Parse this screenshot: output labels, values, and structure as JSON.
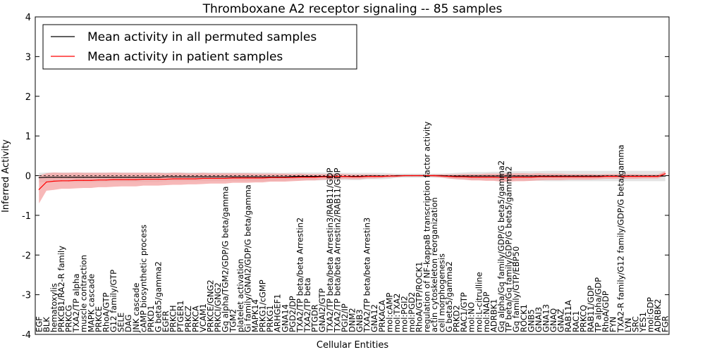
{
  "chart_data": {
    "type": "line",
    "title": "Thromboxane A2 receptor signaling -- 85 samples",
    "xlabel": "Cellular Entities",
    "ylabel": "Inferred Activity",
    "ylim": [
      -4,
      4
    ],
    "yticks": [
      -4,
      -3,
      -2,
      -1,
      0,
      1,
      2,
      3,
      4
    ],
    "legend_position": "top-left",
    "colors": {
      "permuted": "#000000",
      "patient": "#ff0000",
      "permuted_band": "#d9d9d9",
      "patient_band": "#f4a0a0"
    },
    "categories": [
      "EGF",
      "BLK",
      "hematoxylis",
      "PRKCB1/RA2-R family",
      "PRKCG",
      "TXA2/TP alpha",
      "muscle contraction",
      "MAPK cascade",
      "PRKCE",
      "RhoA/GTP",
      "G12 family/GTP",
      "SELE",
      "DAG",
      "JNK cascade",
      "cAMP biosynthetic process",
      "PRKD1",
      "G beta5/gamma2",
      "EGFR",
      "PRKCH",
      "PTGER1",
      "PRKCZ",
      "PRKCA",
      "VCAM1",
      "PRKCE/GNG2",
      "PRKCI/GNG2",
      "Gq alpha/TGM2/GDP/G beta/gamma",
      "TGM2",
      "platelet activation",
      "Gi family/GNAI2/GDP/G beta/gamma",
      "MAPK14",
      "PRKG1/cGMP",
      "PRKG1",
      "ARHGEF1",
      "GNA14",
      "PGD2/DP",
      "TXA2/TP beta/beta Arrestin2",
      "TXA2/TP beta",
      "PTGDR",
      "GNAI2/GTP",
      "TXA2/TP beta/beta Arrestin3/RAB11/GDP",
      "TXA2/TP beta/beta Arrestin2/RAB11/GDP",
      "PGI2/IP",
      "DNM2",
      "GNB3",
      "TXA2/TP beta/beta Arrestin3",
      "GNA12",
      "PRKACA",
      "mol:cAMP",
      "mol:TXA2",
      "mol:PGI2",
      "mol:PGD2",
      "RhoA/GTP/ROCK1",
      "regulation of NF-kappaB transcription factor activity",
      "actin cytoskeleton reorganization",
      "cell morphogenesis",
      "G beta5/gamma2",
      "PRKD2",
      "RAC1/GTP",
      "mol:NO",
      "mol:L-citrulline",
      "mol:NADP",
      "ADRBK1",
      "Gq alpha/Gq family/GDP/G beta5/gamma2",
      "TP beta/Gq family/GDP/G beta5/gamma2",
      "Gq family/GTP/EBP50",
      "ROCK1",
      "GNB5",
      "GNAI3",
      "GNA13",
      "GNAQ",
      "GNAZ",
      "RAB11A",
      "RAC1",
      "PRKCQ",
      "RAB11/GDP",
      "TP alpha/GDP",
      "RhoA/GDP",
      "FYN",
      "TXA2-R family/G12 family/GDP/G beta/gamma",
      "LYN",
      "SRC",
      "YES1",
      "mol:GDP",
      "ADRBK2",
      "FGR"
    ],
    "series": [
      {
        "name": "Mean activity in all permuted samples",
        "values": [
          -0.05,
          -0.04,
          -0.04,
          -0.04,
          -0.04,
          -0.04,
          -0.04,
          -0.04,
          -0.04,
          -0.04,
          -0.04,
          -0.04,
          -0.04,
          -0.04,
          -0.04,
          -0.04,
          -0.04,
          -0.03,
          -0.03,
          -0.03,
          -0.03,
          -0.03,
          -0.03,
          -0.03,
          -0.03,
          -0.03,
          -0.03,
          -0.03,
          -0.03,
          -0.03,
          -0.03,
          -0.03,
          -0.03,
          -0.03,
          -0.02,
          -0.02,
          -0.02,
          -0.02,
          -0.02,
          -0.02,
          -0.02,
          -0.02,
          -0.02,
          -0.02,
          -0.01,
          -0.01,
          -0.01,
          -0.01,
          0,
          0,
          0,
          0,
          0,
          0,
          0,
          -0.01,
          -0.01,
          -0.01,
          -0.01,
          -0.01,
          -0.01,
          -0.01,
          -0.01,
          -0.01,
          -0.01,
          -0.01,
          -0.01,
          -0.01,
          -0.01,
          -0.01,
          -0.01,
          -0.01,
          -0.01,
          -0.01,
          -0.01,
          -0.01,
          -0.01,
          -0.01,
          -0.01,
          -0.01,
          -0.01,
          -0.01,
          -0.01,
          -0.01,
          -0.01
        ],
        "band": [
          0.12,
          0.12,
          0.12,
          0.12,
          0.12,
          0.12,
          0.12,
          0.12,
          0.12,
          0.12,
          0.12,
          0.12,
          0.12,
          0.12,
          0.12,
          0.12,
          0.12,
          0.11,
          0.11,
          0.11,
          0.11,
          0.11,
          0.11,
          0.11,
          0.11,
          0.11,
          0.11,
          0.11,
          0.11,
          0.11,
          0.11,
          0.11,
          0.1,
          0.1,
          0.1,
          0.1,
          0.1,
          0.1,
          0.1,
          0.09,
          0.09,
          0.09,
          0.09,
          0.09,
          0.08,
          0.08,
          0.08,
          0.07,
          0.05,
          0.05,
          0.05,
          0.05,
          0.05,
          0.05,
          0.05,
          0.07,
          0.08,
          0.09,
          0.1,
          0.1,
          0.1,
          0.11,
          0.11,
          0.12,
          0.12,
          0.12,
          0.12,
          0.12,
          0.13,
          0.13,
          0.13,
          0.13,
          0.13,
          0.13,
          0.13,
          0.13,
          0.13,
          0.13,
          0.13,
          0.13,
          0.13,
          0.13,
          0.13,
          0.13,
          0.13
        ]
      },
      {
        "name": "Mean activity in patient samples",
        "values": [
          -0.35,
          -0.16,
          -0.14,
          -0.13,
          -0.13,
          -0.12,
          -0.12,
          -0.12,
          -0.11,
          -0.11,
          -0.1,
          -0.1,
          -0.1,
          -0.1,
          -0.09,
          -0.09,
          -0.09,
          -0.09,
          -0.08,
          -0.08,
          -0.08,
          -0.08,
          -0.07,
          -0.07,
          -0.07,
          -0.07,
          -0.06,
          -0.06,
          -0.06,
          -0.06,
          -0.06,
          -0.05,
          -0.05,
          -0.05,
          -0.05,
          -0.04,
          -0.04,
          -0.04,
          -0.03,
          -0.03,
          -0.02,
          -0.02,
          -0.03,
          -0.03,
          -0.02,
          -0.02,
          -0.02,
          -0.01,
          -0.01,
          0,
          0,
          0,
          0,
          0,
          -0.01,
          -0.02,
          -0.03,
          -0.03,
          -0.04,
          -0.04,
          -0.04,
          -0.04,
          -0.05,
          -0.05,
          -0.04,
          -0.04,
          -0.04,
          -0.03,
          -0.03,
          -0.03,
          -0.03,
          -0.03,
          -0.03,
          -0.03,
          -0.03,
          -0.03,
          -0.02,
          -0.02,
          -0.02,
          -0.02,
          -0.02,
          -0.02,
          -0.02,
          -0.02,
          0.05
        ],
        "band": [
          0.35,
          0.22,
          0.22,
          0.2,
          0.2,
          0.2,
          0.19,
          0.19,
          0.18,
          0.18,
          0.18,
          0.17,
          0.17,
          0.17,
          0.16,
          0.16,
          0.16,
          0.15,
          0.15,
          0.15,
          0.14,
          0.14,
          0.14,
          0.13,
          0.13,
          0.13,
          0.12,
          0.12,
          0.12,
          0.11,
          0.11,
          0.1,
          0.1,
          0.1,
          0.09,
          0.09,
          0.08,
          0.08,
          0.07,
          0.07,
          0.07,
          0.06,
          0.06,
          0.06,
          0.05,
          0.05,
          0.04,
          0.04,
          0.03,
          0.02,
          0.02,
          0.02,
          0.02,
          0.03,
          0.04,
          0.05,
          0.06,
          0.07,
          0.08,
          0.08,
          0.09,
          0.09,
          0.1,
          0.1,
          0.1,
          0.1,
          0.09,
          0.09,
          0.08,
          0.08,
          0.08,
          0.07,
          0.07,
          0.07,
          0.07,
          0.06,
          0.06,
          0.06,
          0.06,
          0.06,
          0.06,
          0.05,
          0.05,
          0.05,
          0.06
        ]
      }
    ]
  }
}
